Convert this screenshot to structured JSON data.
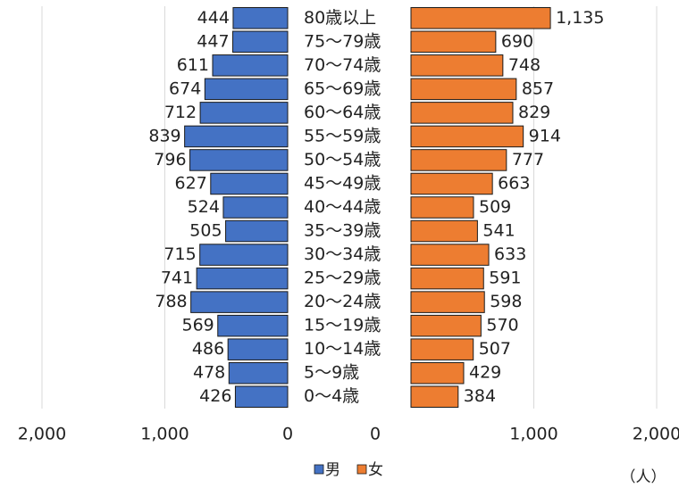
{
  "chart_data": {
    "type": "population_pyramid",
    "categories": [
      "80歳以上",
      "75～79歳",
      "70～74歳",
      "65～69歳",
      "60～64歳",
      "55～59歳",
      "50～54歳",
      "45～49歳",
      "40～44歳",
      "35～39歳",
      "30～34歳",
      "25～29歳",
      "20～24歳",
      "15～19歳",
      "10～14歳",
      "5～9歳",
      "0～4歳"
    ],
    "series": [
      {
        "name": "男",
        "color": "#4472c4",
        "values": [
          444,
          447,
          611,
          674,
          712,
          839,
          796,
          627,
          524,
          505,
          715,
          741,
          788,
          569,
          486,
          478,
          426
        ]
      },
      {
        "name": "女",
        "color": "#ed7d31",
        "values": [
          1135,
          690,
          748,
          857,
          829,
          914,
          777,
          663,
          509,
          541,
          633,
          591,
          598,
          570,
          507,
          429,
          384
        ],
        "value_labels": [
          "1,135",
          "690",
          "748",
          "857",
          "829",
          "914",
          "777",
          "663",
          "509",
          "541",
          "633",
          "591",
          "598",
          "570",
          "507",
          "429",
          "384"
        ]
      }
    ],
    "xlim": [
      0,
      2000
    ],
    "xticks": [
      0,
      {
        "value": 1000,
        "label": "1,000"
      },
      {
        "value": 2000,
        "label": "2,000"
      }
    ],
    "grid": true,
    "legend": "bottom",
    "unit_label": "（人）"
  }
}
